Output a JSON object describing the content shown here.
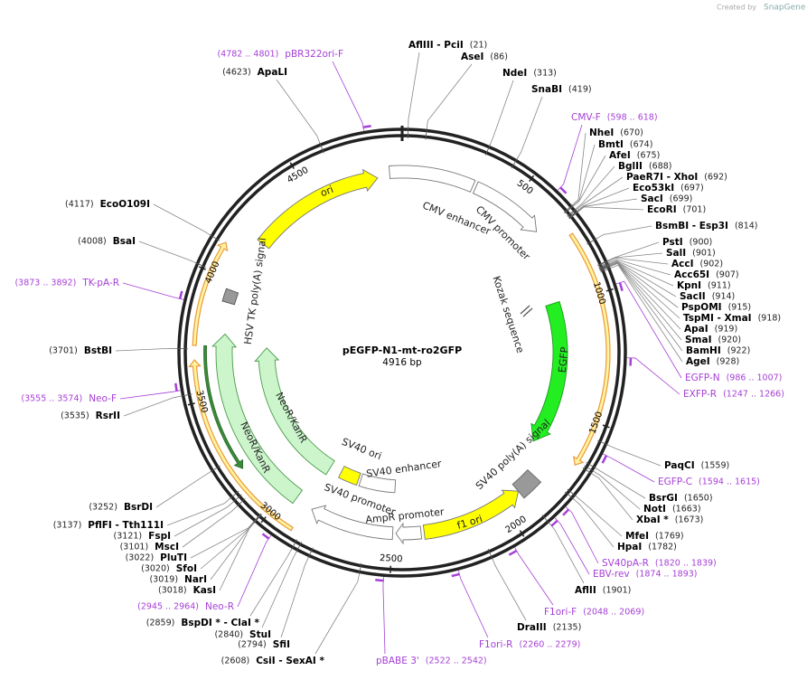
{
  "branding": {
    "prefix": "Created by",
    "product": "SnapGene"
  },
  "title": "pEGFP-N1-mt-ro2GFP",
  "length_label": "4916 bp",
  "length": 4916,
  "ticks": [
    500,
    1000,
    1500,
    2000,
    2500,
    3000,
    3500,
    4000,
    4500
  ],
  "features": [
    "ori",
    "CMV enhancer",
    "CMV promoter",
    "Kozak sequence",
    "EGFP",
    "SV40 poly(A) signal",
    "f1 ori",
    "AmpR promoter",
    "SV40 promoter",
    "SV40 ori",
    "SV40 enhancer",
    "NeoR/KanR",
    "NeoR/KanR",
    "HSV TK poly(A) signal"
  ],
  "enzymes": [
    {
      "name": "AflIII - PciI",
      "position": {
        "value": 21,
        "label": "(21)"
      }
    },
    {
      "name": "AseI",
      "position": {
        "value": 86,
        "label": "(86)"
      }
    },
    {
      "name": "NdeI",
      "position": {
        "value": 313,
        "label": "(313)"
      }
    },
    {
      "name": "SnaBI",
      "position": {
        "value": 419,
        "label": "(419)"
      }
    },
    {
      "name": "NheI",
      "position": {
        "value": 670,
        "label": "(670)"
      }
    },
    {
      "name": "BmtI",
      "position": {
        "value": 674,
        "label": "(674)"
      }
    },
    {
      "name": "AfeI",
      "position": {
        "value": 675,
        "label": "(675)"
      }
    },
    {
      "name": "BglII",
      "position": {
        "value": 688,
        "label": "(688)"
      }
    },
    {
      "name": "PaeR7I - XhoI",
      "position": {
        "value": 692,
        "label": "(692)"
      }
    },
    {
      "name": "Eco53kI",
      "position": {
        "value": 697,
        "label": "(697)"
      }
    },
    {
      "name": "SacI",
      "position": {
        "value": 699,
        "label": "(699)"
      }
    },
    {
      "name": "EcoRI",
      "position": {
        "value": 701,
        "label": "(701)"
      }
    },
    {
      "name": "BsmBI - Esp3I",
      "position": {
        "value": 814,
        "label": "(814)"
      }
    },
    {
      "name": "PstI",
      "position": {
        "value": 900,
        "label": "(900)"
      }
    },
    {
      "name": "SalI",
      "position": {
        "value": 901,
        "label": "(901)"
      }
    },
    {
      "name": "AccI",
      "position": {
        "value": 902,
        "label": "(902)"
      }
    },
    {
      "name": "Acc65I",
      "position": {
        "value": 907,
        "label": "(907)"
      }
    },
    {
      "name": "KpnI",
      "position": {
        "value": 911,
        "label": "(911)"
      }
    },
    {
      "name": "SacII",
      "position": {
        "value": 914,
        "label": "(914)"
      }
    },
    {
      "name": "PspOMI",
      "position": {
        "value": 915,
        "label": "(915)"
      }
    },
    {
      "name": "TspMI - XmaI",
      "position": {
        "value": 918,
        "label": "(918)"
      }
    },
    {
      "name": "ApaI",
      "position": {
        "value": 919,
        "label": "(919)"
      }
    },
    {
      "name": "SmaI",
      "position": {
        "value": 920,
        "label": "(920)"
      }
    },
    {
      "name": "BamHI",
      "position": {
        "value": 922,
        "label": "(922)"
      }
    },
    {
      "name": "AgeI",
      "position": {
        "value": 928,
        "label": "(928)"
      }
    },
    {
      "name": "PaqCI",
      "position": {
        "value": 1559,
        "label": "(1559)"
      }
    },
    {
      "name": "BsrGI",
      "position": {
        "value": 1650,
        "label": "(1650)"
      }
    },
    {
      "name": "NotI",
      "position": {
        "value": 1663,
        "label": "(1663)"
      }
    },
    {
      "name": "XbaI *",
      "position": {
        "value": 1673,
        "label": "(1673)"
      }
    },
    {
      "name": "MfeI",
      "position": {
        "value": 1769,
        "label": "(1769)"
      }
    },
    {
      "name": "HpaI",
      "position": {
        "value": 1782,
        "label": "(1782)"
      }
    },
    {
      "name": "AflII",
      "position": {
        "value": 1901,
        "label": "(1901)"
      }
    },
    {
      "name": "DraIII",
      "position": {
        "value": 2135,
        "label": "(2135)"
      }
    },
    {
      "name": "CsiI - SexAI *",
      "position": {
        "value": 2608,
        "label": "(2608)"
      }
    },
    {
      "name": "SfiI",
      "position": {
        "value": 2794,
        "label": "(2794)"
      }
    },
    {
      "name": "StuI",
      "position": {
        "value": 2840,
        "label": "(2840)"
      }
    },
    {
      "name": "BspDI * - ClaI *",
      "position": {
        "value": 2859,
        "label": "(2859)"
      }
    },
    {
      "name": "KasI",
      "position": {
        "value": 3018,
        "label": "(3018)"
      }
    },
    {
      "name": "NarI",
      "position": {
        "value": 3019,
        "label": "(3019)"
      }
    },
    {
      "name": "SfoI",
      "position": {
        "value": 3020,
        "label": "(3020)"
      }
    },
    {
      "name": "PluTI",
      "position": {
        "value": 3022,
        "label": "(3022)"
      }
    },
    {
      "name": "MscI",
      "position": {
        "value": 3101,
        "label": "(3101)"
      }
    },
    {
      "name": "FspI",
      "position": {
        "value": 3121,
        "label": "(3121)"
      }
    },
    {
      "name": "PflFI - Tth111I",
      "position": {
        "value": 3137,
        "label": "(3137)"
      }
    },
    {
      "name": "BsrDI",
      "position": {
        "value": 3252,
        "label": "(3252)"
      }
    },
    {
      "name": "RsrII",
      "position": {
        "value": 3535,
        "label": "(3535)"
      }
    },
    {
      "name": "BstBI",
      "position": {
        "value": 3701,
        "label": "(3701)"
      }
    },
    {
      "name": "BsaI",
      "position": {
        "value": 4008,
        "label": "(4008)"
      }
    },
    {
      "name": "EcoO109I",
      "position": {
        "value": 4117,
        "label": "(4117)"
      }
    },
    {
      "name": "ApaLI",
      "position": {
        "value": 4623,
        "label": "(4623)"
      }
    }
  ],
  "primers": [
    {
      "name": "pBR322ori-F",
      "position": {
        "start": 4782,
        "end": 4801,
        "label": "(4782 .. 4801)"
      }
    },
    {
      "name": "CMV-F",
      "position": {
        "start": 598,
        "end": 618,
        "label": "(598 .. 618)"
      }
    },
    {
      "name": "EGFP-N",
      "position": {
        "start": 986,
        "end": 1007,
        "label": "(986 .. 1007)"
      }
    },
    {
      "name": "EXFP-R",
      "position": {
        "start": 1247,
        "end": 1266,
        "label": "(1247 .. 1266)"
      }
    },
    {
      "name": "EGFP-C",
      "position": {
        "start": 1594,
        "end": 1615,
        "label": "(1594 .. 1615)"
      }
    },
    {
      "name": "SV40pA-R",
      "position": {
        "start": 1820,
        "end": 1839,
        "label": "(1820 .. 1839)"
      }
    },
    {
      "name": "EBV-rev",
      "position": {
        "start": 1874,
        "end": 1893,
        "label": "(1874 .. 1893)"
      }
    },
    {
      "name": "F1ori-F",
      "position": {
        "start": 2048,
        "end": 2069,
        "label": "(2048 .. 2069)"
      }
    },
    {
      "name": "F1ori-R",
      "position": {
        "start": 2260,
        "end": 2279,
        "label": "(2260 .. 2279)"
      }
    },
    {
      "name": "pBABE 3'",
      "position": {
        "start": 2522,
        "end": 2542,
        "label": "(2522 .. 2542)"
      }
    },
    {
      "name": "Neo-R",
      "position": {
        "start": 2945,
        "end": 2964,
        "label": "(2945 .. 2964)"
      }
    },
    {
      "name": "Neo-F",
      "position": {
        "start": 3555,
        "end": 3574,
        "label": "(3555 .. 3574)"
      }
    },
    {
      "name": "TK-pA-R",
      "position": {
        "start": 3873,
        "end": 3892,
        "label": "(3873 .. 3892)"
      }
    }
  ]
}
